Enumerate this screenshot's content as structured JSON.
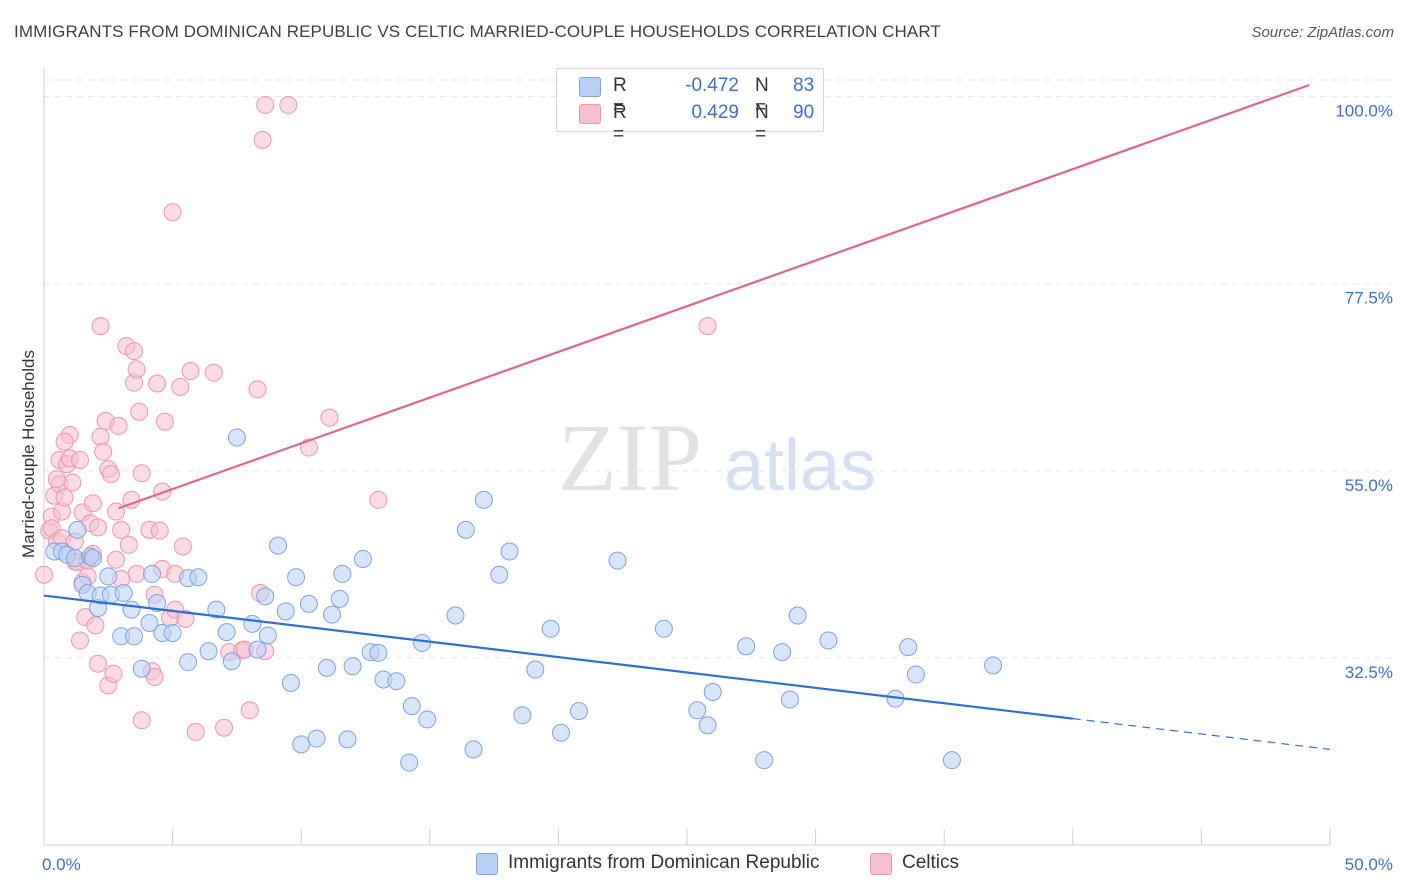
{
  "title": "IMMIGRANTS FROM DOMINICAN REPUBLIC VS CELTIC MARRIED-COUPLE HOUSEHOLDS CORRELATION CHART",
  "source": "Source: ZipAtlas.com",
  "watermark": {
    "zip": "ZIP",
    "atlas": "atlas"
  },
  "legend": {
    "r_label": "R =",
    "n_label": "N =",
    "series": [
      {
        "name": "Immigrants from Dominican Republic",
        "r": "-0.472",
        "n": "83"
      },
      {
        "name": "Celtics",
        "r": "0.429",
        "n": "90"
      }
    ]
  },
  "colors": {
    "blue_fill": "#b8d0f4",
    "blue_stroke": "#7aa3e0",
    "blue_line": "#2f6fd3",
    "pink_fill": "#f7c0d0",
    "pink_stroke": "#ec93ae",
    "pink_line": "#e0648e",
    "tick_label": "#3b6fd4",
    "grid": "#e6e6e6"
  },
  "chart_data": {
    "type": "scatter",
    "title": "IMMIGRANTS FROM DOMINICAN REPUBLIC VS CELTIC MARRIED-COUPLE HOUSEHOLDS CORRELATION CHART",
    "xlabel": "",
    "ylabel": "Married-couple Households",
    "xlim": [
      0,
      50
    ],
    "ylim": [
      10,
      102
    ],
    "x_tick_labels": [
      {
        "value": 0,
        "label": "0.0%"
      },
      {
        "value": 50,
        "label": "50.0%"
      }
    ],
    "y_tick_labels": [
      {
        "value": 32.5,
        "label": "32.5%"
      },
      {
        "value": 55,
        "label": "55.0%"
      },
      {
        "value": 77.5,
        "label": "77.5%"
      },
      {
        "value": 100,
        "label": "100.0%"
      }
    ],
    "x_minor_ticks": [
      5,
      10,
      15,
      20,
      25,
      30,
      35,
      40,
      45,
      50
    ],
    "grid": true,
    "series": [
      {
        "name": "Immigrants from Dominican Republic",
        "color": "#b8d0f4",
        "points": [
          [
            0.4,
            45.3
          ],
          [
            0.7,
            45.3
          ],
          [
            0.9,
            44.9
          ],
          [
            1.2,
            44.5
          ],
          [
            1.3,
            47.9
          ],
          [
            1.5,
            41.3
          ],
          [
            1.8,
            44.7
          ],
          [
            1.9,
            44.5
          ],
          [
            1.7,
            40.3
          ],
          [
            2.1,
            38.5
          ],
          [
            2.2,
            40.0
          ],
          [
            2.5,
            42.3
          ],
          [
            2.6,
            40.1
          ],
          [
            3.0,
            35.1
          ],
          [
            3.1,
            40.3
          ],
          [
            3.4,
            38.3
          ],
          [
            3.5,
            35.1
          ],
          [
            3.8,
            31.2
          ],
          [
            4.1,
            36.7
          ],
          [
            4.2,
            42.6
          ],
          [
            4.4,
            39.1
          ],
          [
            4.6,
            35.5
          ],
          [
            5.0,
            35.5
          ],
          [
            5.6,
            42.1
          ],
          [
            5.6,
            32.0
          ],
          [
            6.0,
            42.2
          ],
          [
            6.4,
            33.3
          ],
          [
            6.7,
            38.3
          ],
          [
            7.1,
            35.6
          ],
          [
            7.3,
            32.1
          ],
          [
            7.5,
            59.0
          ],
          [
            8.1,
            36.6
          ],
          [
            8.3,
            33.5
          ],
          [
            8.6,
            39.9
          ],
          [
            8.7,
            35.2
          ],
          [
            9.1,
            46.0
          ],
          [
            9.4,
            38.1
          ],
          [
            9.6,
            29.5
          ],
          [
            9.8,
            42.2
          ],
          [
            10.0,
            22.1
          ],
          [
            10.3,
            39.0
          ],
          [
            10.6,
            22.8
          ],
          [
            11.0,
            31.3
          ],
          [
            11.2,
            37.7
          ],
          [
            11.5,
            39.6
          ],
          [
            11.6,
            42.6
          ],
          [
            11.8,
            22.7
          ],
          [
            12.0,
            31.5
          ],
          [
            12.4,
            44.4
          ],
          [
            12.7,
            33.2
          ],
          [
            13.0,
            33.1
          ],
          [
            13.2,
            29.9
          ],
          [
            13.7,
            29.7
          ],
          [
            14.2,
            19.9
          ],
          [
            14.3,
            26.7
          ],
          [
            14.7,
            34.3
          ],
          [
            14.9,
            25.1
          ],
          [
            16.0,
            37.6
          ],
          [
            16.4,
            47.9
          ],
          [
            16.7,
            21.5
          ],
          [
            17.1,
            51.5
          ],
          [
            17.7,
            42.5
          ],
          [
            18.1,
            45.3
          ],
          [
            18.6,
            25.6
          ],
          [
            19.1,
            31.1
          ],
          [
            19.7,
            36.0
          ],
          [
            20.1,
            23.5
          ],
          [
            20.8,
            26.1
          ],
          [
            22.3,
            44.2
          ],
          [
            24.1,
            36.0
          ],
          [
            25.4,
            26.2
          ],
          [
            25.8,
            24.4
          ],
          [
            26.0,
            28.4
          ],
          [
            27.3,
            33.9
          ],
          [
            28.0,
            20.2
          ],
          [
            28.7,
            33.2
          ],
          [
            29.0,
            27.5
          ],
          [
            29.3,
            37.6
          ],
          [
            30.5,
            34.6
          ],
          [
            33.1,
            27.6
          ],
          [
            33.6,
            33.8
          ],
          [
            33.9,
            30.5
          ],
          [
            35.3,
            20.2
          ],
          [
            36.9,
            31.6
          ]
        ],
        "trend": {
          "x1": 0,
          "y1": 40.0,
          "x2": 40,
          "y2": 25.2,
          "dashed_to_x": 50,
          "dashed_to_y": 21.5
        }
      },
      {
        "name": "Celtics",
        "color": "#f7c0d0",
        "points": [
          [
            0.0,
            42.5
          ],
          [
            0.2,
            47.8
          ],
          [
            0.3,
            49.5
          ],
          [
            0.3,
            48.1
          ],
          [
            0.4,
            52.0
          ],
          [
            0.5,
            46.5
          ],
          [
            0.6,
            53.4
          ],
          [
            0.6,
            56.3
          ],
          [
            0.7,
            50.1
          ],
          [
            0.7,
            46.9
          ],
          [
            0.8,
            51.8
          ],
          [
            0.9,
            55.8
          ],
          [
            1.0,
            56.5
          ],
          [
            1.0,
            59.3
          ],
          [
            1.1,
            53.6
          ],
          [
            1.2,
            46.5
          ],
          [
            1.2,
            44.1
          ],
          [
            1.3,
            44.0
          ],
          [
            1.4,
            56.3
          ],
          [
            1.4,
            34.6
          ],
          [
            1.5,
            50.0
          ],
          [
            1.5,
            41.6
          ],
          [
            1.6,
            37.4
          ],
          [
            1.7,
            44.2
          ],
          [
            1.7,
            42.3
          ],
          [
            1.8,
            48.7
          ],
          [
            1.9,
            51.1
          ],
          [
            2.0,
            36.4
          ],
          [
            2.1,
            31.8
          ],
          [
            2.1,
            48.2
          ],
          [
            2.2,
            72.4
          ],
          [
            2.2,
            59.1
          ],
          [
            2.3,
            57.3
          ],
          [
            2.4,
            61.0
          ],
          [
            2.5,
            55.2
          ],
          [
            2.5,
            29.2
          ],
          [
            2.6,
            54.6
          ],
          [
            2.7,
            30.6
          ],
          [
            2.8,
            44.3
          ],
          [
            2.8,
            50.1
          ],
          [
            2.9,
            60.4
          ],
          [
            3.0,
            47.9
          ],
          [
            3.2,
            70.0
          ],
          [
            3.3,
            46.1
          ],
          [
            3.4,
            51.5
          ],
          [
            3.5,
            69.4
          ],
          [
            3.5,
            65.6
          ],
          [
            3.6,
            67.2
          ],
          [
            3.6,
            42.6
          ],
          [
            3.7,
            62.1
          ],
          [
            3.8,
            25.0
          ],
          [
            3.8,
            54.7
          ],
          [
            4.1,
            47.9
          ],
          [
            4.2,
            30.9
          ],
          [
            4.3,
            30.2
          ],
          [
            4.3,
            40.1
          ],
          [
            4.4,
            65.5
          ],
          [
            4.5,
            47.8
          ],
          [
            4.6,
            52.5
          ],
          [
            4.6,
            43.2
          ],
          [
            4.7,
            60.9
          ],
          [
            4.9,
            37.3
          ],
          [
            5.0,
            86.1
          ],
          [
            5.1,
            38.3
          ],
          [
            5.1,
            42.6
          ],
          [
            5.3,
            65.1
          ],
          [
            5.4,
            45.9
          ],
          [
            5.5,
            37.2
          ],
          [
            5.7,
            67.0
          ],
          [
            5.9,
            23.6
          ],
          [
            6.6,
            66.8
          ],
          [
            7.0,
            24.1
          ],
          [
            7.2,
            33.2
          ],
          [
            7.7,
            33.4
          ],
          [
            7.8,
            33.5
          ],
          [
            8.0,
            26.2
          ],
          [
            8.3,
            64.8
          ],
          [
            8.4,
            40.3
          ],
          [
            8.6,
            33.3
          ],
          [
            8.6,
            99.0
          ],
          [
            8.5,
            94.8
          ],
          [
            9.5,
            99.0
          ],
          [
            10.3,
            57.8
          ],
          [
            11.1,
            61.4
          ],
          [
            13.0,
            51.5
          ],
          [
            25.8,
            72.4
          ],
          [
            0.5,
            54.0
          ],
          [
            1.9,
            45.0
          ],
          [
            3.0,
            42.0
          ],
          [
            0.8,
            58.5
          ]
        ],
        "trend": {
          "x1": 2.9,
          "y1": 50.5,
          "x2": 49.2,
          "y2": 101.4
        }
      }
    ]
  }
}
